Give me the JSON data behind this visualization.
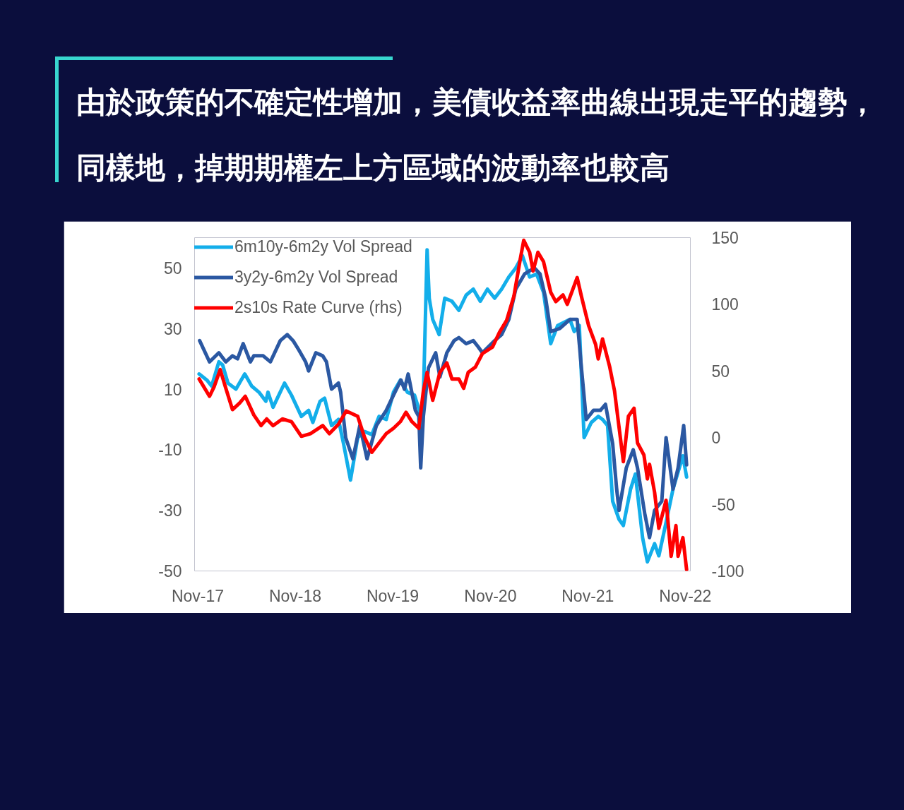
{
  "chart_data": {
    "type": "line",
    "title": "由於政策的不確定性增加，美債收益率曲線出現走平的趨勢，同樣地，掉期期權左上方區域的波動率也較高",
    "xlim": [
      "2017-10-20",
      "2022-11-20"
    ],
    "xticks": [
      {
        "value": "2017-11-01",
        "label": "Nov-17"
      },
      {
        "value": "2018-11-01",
        "label": "Nov-18"
      },
      {
        "value": "2019-11-01",
        "label": "Nov-19"
      },
      {
        "value": "2020-11-01",
        "label": "Nov-20"
      },
      {
        "value": "2021-11-01",
        "label": "Nov-21"
      },
      {
        "value": "2022-11-01",
        "label": "Nov-22"
      }
    ],
    "ylim": [
      -50,
      60
    ],
    "yticks": [
      -50,
      -30,
      -10,
      10,
      30,
      50
    ],
    "y2lim": [
      -100,
      150
    ],
    "y2ticks": [
      -100,
      -50,
      0,
      50,
      100,
      150
    ],
    "legend": "top left",
    "series": [
      {
        "name": "6m10y-6m2y Vol Spread",
        "color": "#13aeea",
        "x": [
          "2017-11-06",
          "2017-12-05",
          "2017-12-23",
          "2018-01-19",
          "2018-02-02",
          "2018-02-22",
          "2018-03-24",
          "2018-04-26",
          "2018-05-22",
          "2018-06-18",
          "2018-07-14",
          "2018-07-22",
          "2018-08-10",
          "2018-08-26",
          "2018-09-22",
          "2018-10-18",
          "2018-11-24",
          "2018-12-21",
          "2019-01-06",
          "2019-02-02",
          "2019-02-19",
          "2019-03-17",
          "2019-04-12",
          "2019-05-01",
          "2019-05-27",
          "2019-06-23",
          "2019-07-19",
          "2019-08-15",
          "2019-09-11",
          "2019-10-08",
          "2019-11-04",
          "2019-11-30",
          "2019-12-26",
          "2020-01-22",
          "2020-02-12",
          "2020-02-21",
          "2020-03-09",
          "2020-03-17",
          "2020-03-30",
          "2020-04-23",
          "2020-05-14",
          "2020-06-10",
          "2020-07-06",
          "2020-08-02",
          "2020-08-29",
          "2020-09-24",
          "2020-10-21",
          "2020-11-17",
          "2020-12-13",
          "2021-01-09",
          "2021-02-04",
          "2021-03-01",
          "2021-03-28",
          "2021-04-23",
          "2021-05-19",
          "2021-06-15",
          "2021-07-11",
          "2021-08-26",
          "2021-09-11",
          "2021-09-30",
          "2021-10-18",
          "2021-11-14",
          "2021-12-10",
          "2021-12-26",
          "2022-01-14",
          "2022-02-02",
          "2022-02-26",
          "2022-03-14",
          "2022-04-10",
          "2022-04-28",
          "2022-05-25",
          "2022-06-12",
          "2022-07-09",
          "2022-07-25",
          "2022-08-21",
          "2022-09-16",
          "2022-10-23",
          "2022-11-06"
        ],
        "values": [
          15,
          13,
          11,
          19,
          18,
          12,
          10,
          15,
          11,
          9,
          6,
          9,
          4,
          7,
          12,
          8,
          1,
          3,
          -1,
          6,
          7,
          -2,
          0,
          -8,
          -20,
          -6,
          -4,
          -5,
          1,
          0,
          9,
          13,
          9,
          8,
          2,
          -3,
          56,
          40,
          33,
          28,
          40,
          39,
          36,
          41,
          43,
          39,
          43,
          40,
          43,
          47,
          50,
          54,
          47,
          48,
          42,
          25,
          31,
          33,
          29,
          31,
          -6,
          -1,
          1,
          0,
          -2,
          -27,
          -33,
          -35,
          -23,
          -18,
          -39,
          -47,
          -41,
          -45,
          -34,
          -23,
          -12,
          -19
        ]
      },
      {
        "name": "3y2y-6m2y Vol Spread",
        "color": "#2b58a2",
        "x": [
          "2017-11-08",
          "2017-12-15",
          "2018-01-19",
          "2018-02-14",
          "2018-03-11",
          "2018-03-30",
          "2018-04-20",
          "2018-05-17",
          "2018-05-30",
          "2018-07-04",
          "2018-07-31",
          "2018-09-06",
          "2018-10-02",
          "2018-10-24",
          "2018-11-14",
          "2018-12-10",
          "2018-12-21",
          "2019-01-17",
          "2019-02-12",
          "2019-02-26",
          "2019-03-17",
          "2019-04-12",
          "2019-04-20",
          "2019-05-09",
          "2019-06-05",
          "2019-07-01",
          "2019-07-28",
          "2019-09-01",
          "2019-10-08",
          "2019-11-04",
          "2019-12-02",
          "2019-12-15",
          "2019-12-29",
          "2020-01-25",
          "2020-02-07",
          "2020-02-14",
          "2020-02-24",
          "2020-03-14",
          "2020-04-10",
          "2020-04-26",
          "2020-05-22",
          "2020-06-18",
          "2020-07-06",
          "2020-08-02",
          "2020-08-29",
          "2020-09-16",
          "2020-10-02",
          "2020-11-17",
          "2020-12-13",
          "2021-01-09",
          "2021-02-04",
          "2021-03-09",
          "2021-04-15",
          "2021-05-06",
          "2021-05-27",
          "2021-06-15",
          "2021-07-19",
          "2021-08-26",
          "2021-09-22",
          "2021-10-08",
          "2021-10-26",
          "2021-11-22",
          "2021-12-18",
          "2022-01-06",
          "2022-02-02",
          "2022-02-17",
          "2022-02-26",
          "2022-03-25",
          "2022-04-20",
          "2022-05-06",
          "2022-06-02",
          "2022-06-20",
          "2022-07-09",
          "2022-08-05",
          "2022-08-21",
          "2022-09-16",
          "2022-10-05",
          "2022-10-26",
          "2022-11-06"
        ],
        "values": [
          26,
          19,
          22,
          19,
          21,
          20,
          25,
          19,
          21,
          21,
          19,
          26,
          28,
          26,
          23,
          19,
          16,
          22,
          21,
          19,
          10,
          12,
          9,
          -6,
          -13,
          -2,
          -13,
          -2,
          3,
          8,
          13,
          10,
          15,
          3,
          1,
          -16,
          1,
          17,
          22,
          14,
          22,
          26,
          27,
          25,
          26,
          24,
          22,
          26,
          28,
          33,
          43,
          48,
          50,
          48,
          40,
          29,
          30,
          33,
          33,
          17,
          0,
          3,
          3,
          5,
          -8,
          -23,
          -30,
          -16,
          -10,
          -16,
          -31,
          -39,
          -30,
          -27,
          -6,
          -23,
          -16,
          -2,
          -15
        ]
      },
      {
        "name": "2s10s Rate Curve (rhs)",
        "color": "#ff0000",
        "axis": "y2",
        "x": [
          "2017-11-06",
          "2017-12-15",
          "2018-01-01",
          "2018-01-24",
          "2018-02-14",
          "2018-03-11",
          "2018-04-07",
          "2018-04-28",
          "2018-05-30",
          "2018-06-26",
          "2018-07-17",
          "2018-08-10",
          "2018-09-14",
          "2018-10-18",
          "2018-11-24",
          "2018-12-28",
          "2019-02-12",
          "2019-03-09",
          "2019-04-12",
          "2019-05-11",
          "2019-06-23",
          "2019-07-19",
          "2019-08-15",
          "2019-09-11",
          "2019-10-08",
          "2019-11-04",
          "2019-11-30",
          "2019-12-21",
          "2020-01-12",
          "2020-02-07",
          "2020-02-24",
          "2020-03-09",
          "2020-03-30",
          "2020-04-26",
          "2020-05-22",
          "2020-06-10",
          "2020-07-06",
          "2020-07-24",
          "2020-08-10",
          "2020-09-06",
          "2020-10-02",
          "2020-11-09",
          "2020-12-05",
          "2021-01-01",
          "2021-01-28",
          "2021-02-21",
          "2021-03-06",
          "2021-03-28",
          "2021-04-10",
          "2021-04-28",
          "2021-05-19",
          "2021-06-15",
          "2021-07-04",
          "2021-07-31",
          "2021-08-16",
          "2021-09-22",
          "2021-10-08",
          "2021-11-04",
          "2021-11-30",
          "2021-12-10",
          "2021-12-26",
          "2022-01-22",
          "2022-02-09",
          "2022-02-22",
          "2022-03-14",
          "2022-04-02",
          "2022-04-23",
          "2022-05-06",
          "2022-05-30",
          "2022-06-12",
          "2022-06-20",
          "2022-07-09",
          "2022-07-25",
          "2022-08-21",
          "2022-09-09",
          "2022-09-27",
          "2022-10-05",
          "2022-10-23",
          "2022-11-06"
        ],
        "values": [
          44,
          31,
          38,
          51,
          37,
          21,
          26,
          31,
          17,
          9,
          14,
          9,
          14,
          12,
          1,
          3,
          9,
          3,
          10,
          20,
          16,
          0,
          -11,
          -4,
          3,
          7,
          12,
          19,
          12,
          7,
          35,
          49,
          28,
          49,
          56,
          44,
          44,
          37,
          49,
          53,
          63,
          68,
          79,
          88,
          106,
          134,
          148,
          139,
          125,
          139,
          132,
          109,
          102,
          107,
          100,
          120,
          106,
          84,
          70,
          59,
          74,
          53,
          35,
          14,
          -18,
          16,
          22,
          -4,
          -13,
          -31,
          -20,
          -41,
          -68,
          -47,
          -89,
          -66,
          -89,
          -75,
          -99
        ]
      }
    ]
  }
}
